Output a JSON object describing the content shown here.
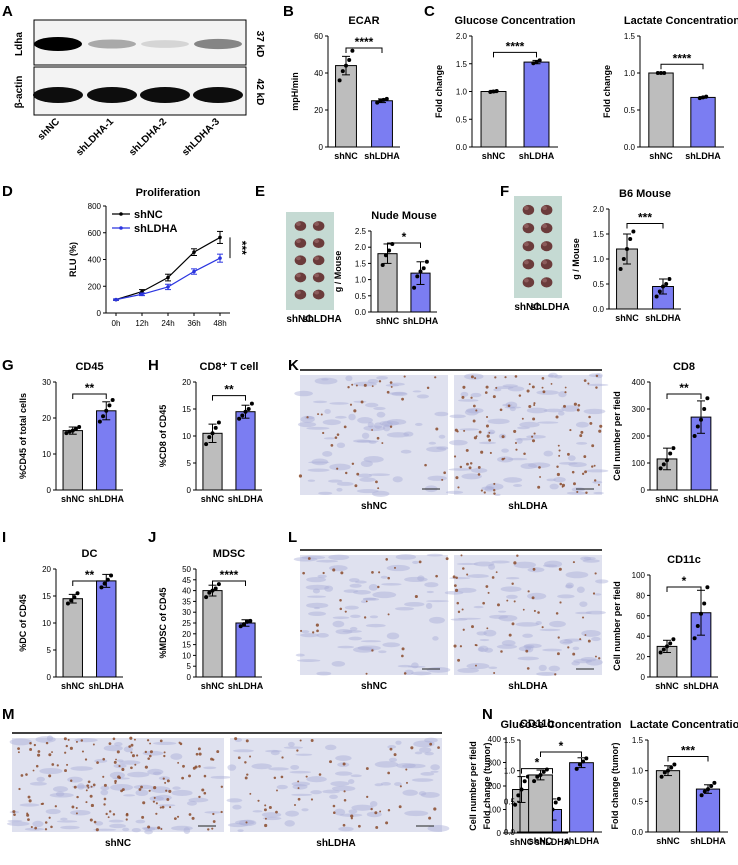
{
  "panel_letters": [
    "A",
    "B",
    "C",
    "D",
    "E",
    "F",
    "G",
    "H",
    "K",
    "I",
    "J",
    "L",
    "M",
    "N"
  ],
  "colors": {
    "nc": "#bdbdbd",
    "sh": "#7b7df2",
    "line_nc": "#000000",
    "line_sh": "#2b35e0",
    "tissue": "#a8aed8",
    "stain": "#8a4a2a"
  },
  "western": {
    "proteins": [
      "Ldha",
      "β-actin"
    ],
    "sizes": [
      "37 kD",
      "42 kD"
    ],
    "lanes": [
      "shNC",
      "shLDHA-1",
      "shLDHA-2",
      "shLDHA-3"
    ],
    "ldha_intensity": [
      1.0,
      0.3,
      0.12,
      0.45
    ]
  },
  "histology": [
    {
      "labels": [
        "shNC",
        "shLDHA"
      ]
    },
    {
      "labels": [
        "shNC",
        "shLDHA"
      ]
    },
    {
      "labels": [
        "shNC",
        "shLDHA"
      ]
    }
  ],
  "photos": [
    {
      "labels": [
        "shNC",
        "shLDHA"
      ]
    },
    {
      "labels": [
        "shNC",
        "shLDHA"
      ]
    }
  ],
  "chart_data": [
    {
      "id": "B",
      "type": "bar",
      "title": "ECAR",
      "ylabel": "mpH/min",
      "categories": [
        "shNC",
        "shLDHA"
      ],
      "values": [
        44,
        25
      ],
      "errors": [
        5,
        1
      ],
      "ylim": [
        0,
        60
      ],
      "yticks": [
        0,
        20,
        40,
        60
      ],
      "points": [
        [
          36,
          41,
          44,
          47,
          52
        ],
        [
          24,
          25,
          25.5,
          26
        ]
      ],
      "sig": "****"
    },
    {
      "id": "C1",
      "type": "bar",
      "title": "Glucose Concentration",
      "ylabel": "Fold change",
      "categories": [
        "shNC",
        "shLDHA"
      ],
      "values": [
        1.0,
        1.53
      ],
      "errors": [
        0.02,
        0.03
      ],
      "ylim": [
        0,
        2.0
      ],
      "yticks": [
        0.0,
        0.5,
        1.0,
        1.5,
        2.0
      ],
      "points": [
        [
          0.99,
          1.0,
          1.01
        ],
        [
          1.51,
          1.53,
          1.56
        ]
      ],
      "sig": "****"
    },
    {
      "id": "C2",
      "type": "bar",
      "title": "Lactate Concentration",
      "ylabel": "Fold change",
      "categories": [
        "shNC",
        "shLDHA"
      ],
      "values": [
        1.0,
        0.67
      ],
      "errors": [
        0.01,
        0.01
      ],
      "ylim": [
        0,
        1.5
      ],
      "yticks": [
        0.0,
        0.5,
        1.0,
        1.5
      ],
      "points": [
        [
          1.0,
          1.0,
          1.0
        ],
        [
          0.66,
          0.67,
          0.68
        ]
      ],
      "sig": "****"
    },
    {
      "id": "D",
      "type": "line",
      "title": "Proliferation",
      "ylabel": "RLU (%)",
      "x": [
        "0h",
        "12h",
        "24h",
        "36h",
        "48h"
      ],
      "ylim": [
        0,
        800
      ],
      "yticks": [
        0,
        200,
        400,
        600,
        800
      ],
      "series": [
        {
          "name": "shNC",
          "values": [
            100,
            160,
            265,
            455,
            565
          ],
          "errors": [
            5,
            15,
            25,
            25,
            45
          ]
        },
        {
          "name": "shLDHA",
          "values": [
            100,
            140,
            195,
            310,
            410
          ],
          "errors": [
            5,
            10,
            20,
            20,
            30
          ]
        }
      ],
      "sig": "***"
    },
    {
      "id": "E",
      "type": "bar",
      "title": "Nude Mouse",
      "ylabel": "g / Mouse",
      "categories": [
        "shNC",
        "shLDHA"
      ],
      "values": [
        1.8,
        1.2
      ],
      "errors": [
        0.3,
        0.35
      ],
      "ylim": [
        0,
        2.5
      ],
      "yticks": [
        0.0,
        0.5,
        1.0,
        1.5,
        2.0,
        2.5
      ],
      "points": [
        [
          1.45,
          1.75,
          1.9,
          2.1
        ],
        [
          0.75,
          1.1,
          1.25,
          1.35,
          1.55
        ]
      ],
      "sig": "*"
    },
    {
      "id": "F",
      "type": "bar",
      "title": "B6 Mouse",
      "ylabel": "g / Mouse",
      "categories": [
        "shNC",
        "shLDHA"
      ],
      "values": [
        1.2,
        0.45
      ],
      "errors": [
        0.3,
        0.15
      ],
      "ylim": [
        0,
        2.0
      ],
      "yticks": [
        0.0,
        0.5,
        1.0,
        1.5,
        2.0
      ],
      "points": [
        [
          0.8,
          1.0,
          1.2,
          1.4,
          1.55
        ],
        [
          0.25,
          0.35,
          0.45,
          0.5,
          0.6
        ]
      ],
      "sig": "***"
    },
    {
      "id": "G",
      "type": "bar",
      "title": "CD45",
      "ylabel": "%CD45 of total cells",
      "categories": [
        "shNC",
        "shLDHA"
      ],
      "values": [
        16.5,
        22
      ],
      "errors": [
        1,
        2.5
      ],
      "ylim": [
        0,
        30
      ],
      "yticks": [
        0,
        10,
        20,
        30
      ],
      "points": [
        [
          15.8,
          16.2,
          16.5,
          17,
          17.5
        ],
        [
          19,
          20.5,
          22,
          23.5,
          25
        ]
      ],
      "sig": "**"
    },
    {
      "id": "H",
      "type": "bar",
      "title": "CD8⁺ T cell",
      "ylabel": "%CD8 of CD45",
      "categories": [
        "shNC",
        "shLDHA"
      ],
      "values": [
        10.5,
        14.5
      ],
      "errors": [
        1.7,
        1.2
      ],
      "ylim": [
        0,
        20
      ],
      "yticks": [
        0,
        5,
        10,
        15,
        20
      ],
      "points": [
        [
          8.5,
          9.8,
          10.5,
          11.5,
          12.5
        ],
        [
          13.2,
          13.8,
          14.5,
          15,
          16
        ]
      ],
      "sig": "**"
    },
    {
      "id": "K",
      "type": "bar",
      "title": "CD8",
      "ylabel": "Cell number per field",
      "categories": [
        "shNC",
        "shLDHA"
      ],
      "values": [
        115,
        270
      ],
      "errors": [
        40,
        60
      ],
      "ylim": [
        0,
        400
      ],
      "yticks": [
        0,
        100,
        200,
        300,
        400
      ],
      "points": [
        [
          80,
          95,
          110,
          135,
          155
        ],
        [
          200,
          235,
          260,
          300,
          340
        ]
      ],
      "sig": "**"
    },
    {
      "id": "I",
      "type": "bar",
      "title": "DC",
      "ylabel": "%DC of CD45",
      "categories": [
        "shNC",
        "shLDHA"
      ],
      "values": [
        14.5,
        17.8
      ],
      "errors": [
        0.8,
        1.2
      ],
      "ylim": [
        0,
        20
      ],
      "yticks": [
        0,
        5,
        10,
        15,
        20
      ],
      "points": [
        [
          13.6,
          14.2,
          14.8,
          15.5
        ],
        [
          16.6,
          17.3,
          18,
          18.8
        ]
      ],
      "sig": "**"
    },
    {
      "id": "J",
      "type": "bar",
      "title": "MDSC",
      "ylabel": "%MDSC of CD45",
      "categories": [
        "shNC",
        "shLDHA"
      ],
      "values": [
        40,
        25
      ],
      "errors": [
        2.5,
        1.5
      ],
      "ylim": [
        0,
        50
      ],
      "yticks": [
        0,
        5,
        10,
        15,
        20,
        25,
        30,
        35,
        40,
        45,
        50
      ],
      "points": [
        [
          37,
          39,
          40,
          41,
          43
        ],
        [
          23.5,
          24.5,
          25.5,
          26
        ]
      ],
      "sig": "****"
    },
    {
      "id": "L",
      "type": "bar",
      "title": "CD11c",
      "ylabel": "Cell number per field",
      "categories": [
        "shNC",
        "shLDHA"
      ],
      "values": [
        30,
        63
      ],
      "errors": [
        6,
        22
      ],
      "ylim": [
        0,
        100
      ],
      "yticks": [
        0,
        20,
        40,
        60,
        80,
        100
      ],
      "points": [
        [
          24,
          27,
          30,
          33,
          37
        ],
        [
          38,
          50,
          62,
          72,
          88
        ]
      ],
      "sig": "*"
    },
    {
      "id": "M",
      "type": "bar",
      "title": "CD11b",
      "ylabel": "Cell number per field",
      "categories": [
        "shNC",
        "shLDHA"
      ],
      "values": [
        185,
        100
      ],
      "errors": [
        55,
        45
      ],
      "ylim": [
        0,
        400
      ],
      "yticks": [
        0,
        100,
        200,
        300,
        400
      ],
      "points": [
        [
          120,
          160,
          185,
          220,
          240
        ],
        [
          60,
          80,
          100,
          130,
          145
        ]
      ],
      "sig": "*"
    },
    {
      "id": "N1",
      "type": "bar",
      "title": "Glucose Concentration",
      "ylabel": "Fold change (tumor)",
      "categories": [
        "shNC",
        "shLDHA"
      ],
      "values": [
        0.93,
        1.13
      ],
      "errors": [
        0.08,
        0.08
      ],
      "ylim": [
        0,
        1.5
      ],
      "yticks": [
        0.0,
        0.5,
        1.0,
        1.5
      ],
      "points": [
        [
          0.83,
          0.9,
          0.93,
          0.98,
          1.02
        ],
        [
          1.03,
          1.1,
          1.15,
          1.2
        ]
      ],
      "sig": "*"
    },
    {
      "id": "N2",
      "type": "bar",
      "title": "Lactate Concentration",
      "ylabel": "Fold change (tumor)",
      "categories": [
        "shNC",
        "shLDHA"
      ],
      "values": [
        1.0,
        0.7
      ],
      "errors": [
        0.08,
        0.07
      ],
      "ylim": [
        0,
        1.5
      ],
      "yticks": [
        0.0,
        0.5,
        1.0,
        1.5
      ],
      "points": [
        [
          0.9,
          0.97,
          1.0,
          1.05,
          1.1
        ],
        [
          0.6,
          0.66,
          0.7,
          0.75,
          0.8
        ]
      ],
      "sig": "***"
    }
  ]
}
